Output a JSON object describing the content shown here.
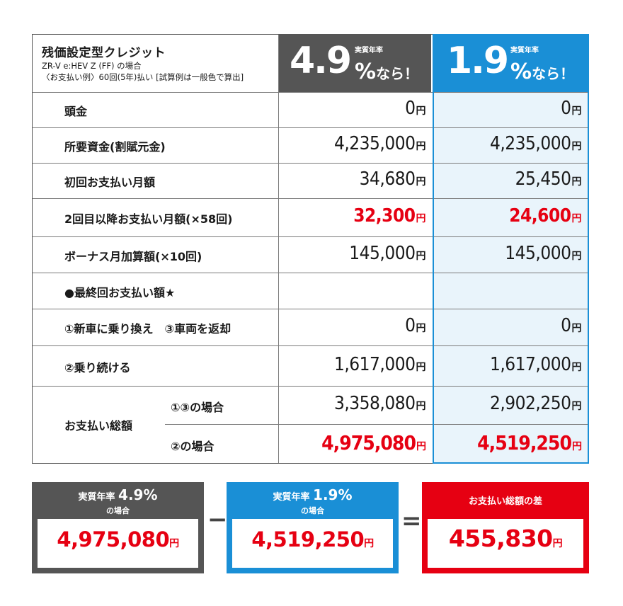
{
  "header": {
    "title": "残価設定型クレジット",
    "sub1": "ZR-V e:HEV Z (FF) の場合",
    "sub2": "〈お支払い例〉60回(5年)払い [試算例は一般色で算出]",
    "plan_a": {
      "rate": "4.9",
      "caption": "実質年率",
      "pct": "%",
      "suffix": "なら！",
      "color": "#555555"
    },
    "plan_b": {
      "rate": "1.9",
      "caption": "実質年率",
      "pct": "%",
      "suffix": "なら！",
      "color": "#1a8fd6"
    }
  },
  "yen": "円",
  "rows": [
    {
      "label": "頭金",
      "a": "0",
      "b": "0"
    },
    {
      "label": "所要資金(割賦元金)",
      "a": "4,235,000",
      "b": "4,235,000"
    },
    {
      "label": "初回お支払い月額",
      "a": "34,680",
      "b": "25,450"
    },
    {
      "label": "2回目以降お支払い月額(×58回)",
      "a": "32,300",
      "b": "24,600"
    },
    {
      "label": "ボーナス月加算額(×10回)",
      "a": "145,000",
      "b": "145,000"
    },
    {
      "label": "●最終回お支払い額★",
      "a": "",
      "b": ""
    },
    {
      "label": "①新車に乗り換え　③車両を返却",
      "a": "0",
      "b": "0"
    },
    {
      "label": "②乗り続ける",
      "a": "1,617,000",
      "b": "1,617,000"
    }
  ],
  "total": {
    "label": "お支払い総額",
    "sub1": {
      "label": "①③の場合",
      "a": "3,358,080",
      "b": "2,902,250"
    },
    "sub2": {
      "label": "②の場合",
      "a": "4,975,080",
      "b": "4,519,250"
    }
  },
  "summary": {
    "box_a": {
      "caption": "実質年率",
      "rate": "4.9%",
      "sub": "の場合",
      "value": "4,975,080",
      "color": "#555555"
    },
    "minus": "−",
    "box_b": {
      "caption": "実質年率",
      "rate": "1.9%",
      "sub": "の場合",
      "value": "4,519,250",
      "color": "#1a8fd6"
    },
    "equals": "=",
    "box_c": {
      "caption": "お支払い総額の差",
      "value": "455,830",
      "color": "#e60012"
    }
  },
  "colors": {
    "red": "#e60012",
    "blue": "#1a8fd6",
    "gray": "#555555",
    "light_blue": "#e9f4fb"
  }
}
